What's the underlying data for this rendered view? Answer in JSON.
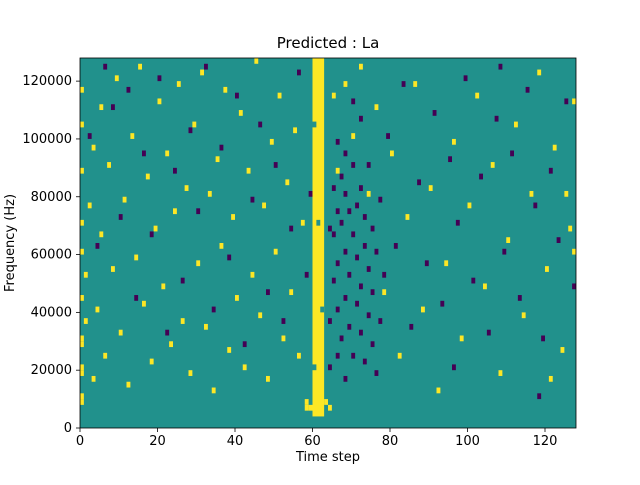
{
  "title": "Predicted : La",
  "xlabel": "Time step",
  "ylabel": "Frequency (Hz)",
  "chart_data": {
    "type": "heatmap",
    "title": "Predicted : La",
    "xlabel": "Time step",
    "ylabel": "Frequency (Hz)",
    "xlim": [
      0,
      128
    ],
    "ylim": [
      0,
      128000
    ],
    "x_ticks": [
      0,
      20,
      40,
      60,
      80,
      100,
      120
    ],
    "y_ticks": [
      0,
      20000,
      40000,
      60000,
      80000,
      100000,
      120000
    ],
    "grid": false,
    "legend": "none",
    "figure_background": "#ffffff",
    "background_color": "#21918c",
    "high_color": "#fde725",
    "low_color": "#440154",
    "cell": {
      "dt": 1,
      "df": 2000
    },
    "yellow_band": {
      "t_range": [
        60,
        63
      ],
      "row_range": [
        2,
        64
      ]
    },
    "band_gaps": [
      [
        60,
        52
      ],
      [
        61,
        35
      ],
      [
        62,
        20
      ],
      [
        60,
        10
      ]
    ],
    "yellow_cells": [
      [
        0,
        4
      ],
      [
        0,
        5
      ],
      [
        0,
        9
      ],
      [
        0,
        10
      ],
      [
        0,
        14
      ],
      [
        0,
        15
      ],
      [
        0,
        22
      ],
      [
        0,
        30
      ],
      [
        0,
        35
      ],
      [
        0,
        44
      ],
      [
        0,
        52
      ],
      [
        0,
        58
      ],
      [
        1,
        18
      ],
      [
        1,
        26
      ],
      [
        2,
        38
      ],
      [
        3,
        8
      ],
      [
        3,
        48
      ],
      [
        4,
        20
      ],
      [
        5,
        33
      ],
      [
        5,
        55
      ],
      [
        6,
        12
      ],
      [
        7,
        45
      ],
      [
        8,
        27
      ],
      [
        9,
        60
      ],
      [
        10,
        16
      ],
      [
        11,
        39
      ],
      [
        12,
        7
      ],
      [
        13,
        50
      ],
      [
        14,
        29
      ],
      [
        15,
        62
      ],
      [
        16,
        21
      ],
      [
        17,
        43
      ],
      [
        18,
        11
      ],
      [
        19,
        34
      ],
      [
        20,
        56
      ],
      [
        21,
        24
      ],
      [
        22,
        47
      ],
      [
        23,
        14
      ],
      [
        24,
        37
      ],
      [
        25,
        59
      ],
      [
        26,
        18
      ],
      [
        27,
        41
      ],
      [
        28,
        9
      ],
      [
        29,
        52
      ],
      [
        30,
        28
      ],
      [
        31,
        61
      ],
      [
        32,
        17
      ],
      [
        33,
        40
      ],
      [
        34,
        6
      ],
      [
        35,
        46
      ],
      [
        36,
        31
      ],
      [
        37,
        58
      ],
      [
        38,
        13
      ],
      [
        39,
        36
      ],
      [
        40,
        22
      ],
      [
        41,
        54
      ],
      [
        42,
        10
      ],
      [
        43,
        44
      ],
      [
        44,
        26
      ],
      [
        45,
        63
      ],
      [
        46,
        19
      ],
      [
        47,
        38
      ],
      [
        48,
        8
      ],
      [
        49,
        49
      ],
      [
        50,
        30
      ],
      [
        51,
        57
      ],
      [
        52,
        15
      ],
      [
        53,
        42
      ],
      [
        54,
        23
      ],
      [
        55,
        51
      ],
      [
        56,
        12
      ],
      [
        57,
        35
      ],
      [
        58,
        3
      ],
      [
        58,
        4
      ],
      [
        59,
        3
      ],
      [
        63,
        4
      ],
      [
        64,
        3
      ],
      [
        65,
        57
      ],
      [
        66,
        44
      ],
      [
        68,
        59
      ],
      [
        70,
        50
      ],
      [
        72,
        62
      ],
      [
        74,
        40
      ],
      [
        76,
        55
      ],
      [
        78,
        23
      ],
      [
        80,
        47
      ],
      [
        82,
        12
      ],
      [
        84,
        36
      ],
      [
        86,
        59
      ],
      [
        88,
        20
      ],
      [
        90,
        41
      ],
      [
        92,
        6
      ],
      [
        94,
        28
      ],
      [
        96,
        49
      ],
      [
        98,
        15
      ],
      [
        100,
        38
      ],
      [
        102,
        57
      ],
      [
        104,
        24
      ],
      [
        106,
        45
      ],
      [
        108,
        9
      ],
      [
        110,
        32
      ],
      [
        112,
        52
      ],
      [
        114,
        19
      ],
      [
        116,
        40
      ],
      [
        118,
        61
      ],
      [
        120,
        27
      ],
      [
        122,
        48
      ],
      [
        124,
        13
      ],
      [
        126,
        34
      ],
      [
        127,
        56
      ],
      [
        127,
        30
      ],
      [
        121,
        8
      ],
      [
        125,
        40
      ]
    ],
    "purple_cells": [
      [
        2,
        50
      ],
      [
        4,
        31
      ],
      [
        6,
        62
      ],
      [
        8,
        55
      ],
      [
        10,
        36
      ],
      [
        12,
        58
      ],
      [
        14,
        22
      ],
      [
        16,
        47
      ],
      [
        18,
        33
      ],
      [
        20,
        60
      ],
      [
        22,
        16
      ],
      [
        24,
        44
      ],
      [
        26,
        25
      ],
      [
        28,
        51
      ],
      [
        30,
        37
      ],
      [
        32,
        62
      ],
      [
        34,
        20
      ],
      [
        36,
        48
      ],
      [
        38,
        29
      ],
      [
        40,
        57
      ],
      [
        42,
        14
      ],
      [
        44,
        39
      ],
      [
        46,
        52
      ],
      [
        48,
        23
      ],
      [
        50,
        45
      ],
      [
        52,
        18
      ],
      [
        54,
        34
      ],
      [
        56,
        61
      ],
      [
        58,
        26
      ],
      [
        59,
        40
      ],
      [
        79,
        50
      ],
      [
        81,
        31
      ],
      [
        83,
        59
      ],
      [
        85,
        17
      ],
      [
        87,
        42
      ],
      [
        89,
        28
      ],
      [
        91,
        54
      ],
      [
        93,
        21
      ],
      [
        95,
        46
      ],
      [
        97,
        35
      ],
      [
        99,
        60
      ],
      [
        101,
        25
      ],
      [
        103,
        43
      ],
      [
        105,
        16
      ],
      [
        107,
        53
      ],
      [
        109,
        30
      ],
      [
        111,
        47
      ],
      [
        113,
        22
      ],
      [
        115,
        58
      ],
      [
        117,
        38
      ],
      [
        119,
        15
      ],
      [
        121,
        44
      ],
      [
        123,
        32
      ],
      [
        125,
        56
      ],
      [
        127,
        24
      ],
      [
        118,
        5
      ],
      [
        108,
        62
      ],
      [
        96,
        10
      ],
      [
        64,
        10
      ],
      [
        64,
        18
      ],
      [
        64,
        34
      ],
      [
        65,
        25
      ],
      [
        65,
        33
      ],
      [
        65,
        41
      ],
      [
        66,
        12
      ],
      [
        66,
        20
      ],
      [
        66,
        28
      ],
      [
        66,
        37
      ],
      [
        67,
        35
      ],
      [
        67,
        15
      ],
      [
        67,
        43
      ],
      [
        68,
        22
      ],
      [
        68,
        30
      ],
      [
        68,
        8
      ],
      [
        68,
        40
      ],
      [
        69,
        37
      ],
      [
        69,
        17
      ],
      [
        69,
        26
      ],
      [
        70,
        33
      ],
      [
        70,
        12
      ],
      [
        70,
        45
      ],
      [
        71,
        21
      ],
      [
        71,
        29
      ],
      [
        71,
        38
      ],
      [
        72,
        16
      ],
      [
        72,
        24
      ],
      [
        72,
        41
      ],
      [
        73,
        11
      ],
      [
        73,
        31
      ],
      [
        73,
        36
      ],
      [
        74,
        19
      ],
      [
        74,
        27
      ],
      [
        74,
        45
      ],
      [
        75,
        14
      ],
      [
        75,
        34
      ],
      [
        75,
        23
      ],
      [
        76,
        30
      ],
      [
        76,
        9
      ],
      [
        77,
        39
      ],
      [
        77,
        18
      ],
      [
        78,
        26
      ],
      [
        70,
        56
      ],
      [
        72,
        53
      ],
      [
        68,
        47
      ],
      [
        66,
        49
      ]
    ]
  }
}
